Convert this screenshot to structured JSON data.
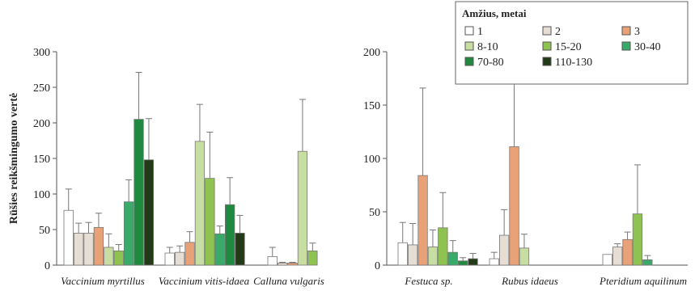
{
  "chart_data": {
    "type": "bar",
    "ylabel": "Rūšies reikšmingumo vertė",
    "legend": {
      "title": "Amžius, metai",
      "placement": "top-right"
    },
    "series": [
      {
        "name": "1",
        "color": "#ffffff"
      },
      {
        "name": "2",
        "color": "#e6ddd4"
      },
      {
        "name": "3",
        "color": "#e9a278"
      },
      {
        "name": "8-10",
        "color": "#c8dda2"
      },
      {
        "name": "15-20",
        "color": "#8fc351"
      },
      {
        "name": "30-40",
        "color": "#3aaa6a"
      },
      {
        "name": "70-80",
        "color": "#1f8a3f"
      },
      {
        "name": "110-130",
        "color": "#233a18"
      }
    ],
    "panels": [
      {
        "yticks": [
          "0",
          "50",
          "100",
          "150",
          "200",
          "250",
          "300"
        ],
        "ylim": [
          0,
          300
        ],
        "groups": [
          {
            "category": "Vaccinium myrtillus",
            "bars": [
              {
                "series": "1",
                "value": 77,
                "err": 30
              },
              {
                "series": "2",
                "value": 45,
                "err": 14
              },
              {
                "series": "2",
                "value": 45,
                "err": 15
              },
              {
                "series": "3",
                "value": 53,
                "err": 20
              },
              {
                "series": "8-10",
                "value": 25,
                "err": 19
              },
              {
                "series": "15-20",
                "value": 20,
                "err": 9
              },
              {
                "series": "30-40",
                "value": 89,
                "err": 31
              },
              {
                "series": "70-80",
                "value": 205,
                "err": 66
              },
              {
                "series": "110-130",
                "value": 148,
                "err": 58
              }
            ]
          },
          {
            "category": "Vaccinium vitis-idaea",
            "bars": [
              {
                "series": "1",
                "value": 17,
                "err": 8
              },
              {
                "series": "2",
                "value": 18,
                "err": 9
              },
              {
                "series": "3",
                "value": 32,
                "err": 15
              },
              {
                "series": "8-10",
                "value": 174,
                "err": 52
              },
              {
                "series": "15-20",
                "value": 122,
                "err": 65
              },
              {
                "series": "30-40",
                "value": 44,
                "err": 11
              },
              {
                "series": "70-80",
                "value": 85,
                "err": 38
              },
              {
                "series": "110-130",
                "value": 45,
                "err": 25
              }
            ]
          },
          {
            "category": "Calluna vulgaris",
            "bars": [
              {
                "series": "1",
                "value": 12,
                "err": 13
              },
              {
                "series": "2",
                "value": 3,
                "err": 1
              },
              {
                "series": "3",
                "value": 3,
                "err": 1
              },
              {
                "series": "8-10",
                "value": 160,
                "err": 73
              },
              {
                "series": "15-20",
                "value": 20,
                "err": 11
              }
            ]
          }
        ]
      },
      {
        "yticks": [
          "0",
          "50",
          "100",
          "150",
          "200"
        ],
        "ylim": [
          0,
          200
        ],
        "groups": [
          {
            "category": "Festuca sp.",
            "bars": [
              {
                "series": "1",
                "value": 21,
                "err": 19
              },
              {
                "series": "2",
                "value": 19,
                "err": 20
              },
              {
                "series": "3",
                "value": 84,
                "err": 82
              },
              {
                "series": "8-10",
                "value": 17,
                "err": 16
              },
              {
                "series": "15-20",
                "value": 35,
                "err": 33
              },
              {
                "series": "30-40",
                "value": 12,
                "err": 11
              },
              {
                "series": "70-80",
                "value": 4,
                "err": 3
              },
              {
                "series": "110-130",
                "value": 6,
                "err": 5
              }
            ]
          },
          {
            "category": "Rubus idaeus",
            "bars": [
              {
                "series": "1",
                "value": 6,
                "err": 6
              },
              {
                "series": "2",
                "value": 28,
                "err": 24
              },
              {
                "series": "3",
                "value": 111,
                "err": 82
              },
              {
                "series": "8-10",
                "value": 16,
                "err": 13
              }
            ]
          },
          {
            "category": "Pteridium aquilinum",
            "bars": [
              {
                "series": "1",
                "value": 10,
                "err": 0
              },
              {
                "series": "2",
                "value": 17,
                "err": 3
              },
              {
                "series": "3",
                "value": 24,
                "err": 7
              },
              {
                "series": "15-20",
                "value": 48,
                "err": 46
              },
              {
                "series": "30-40",
                "value": 5,
                "err": 4
              }
            ]
          }
        ]
      }
    ]
  }
}
